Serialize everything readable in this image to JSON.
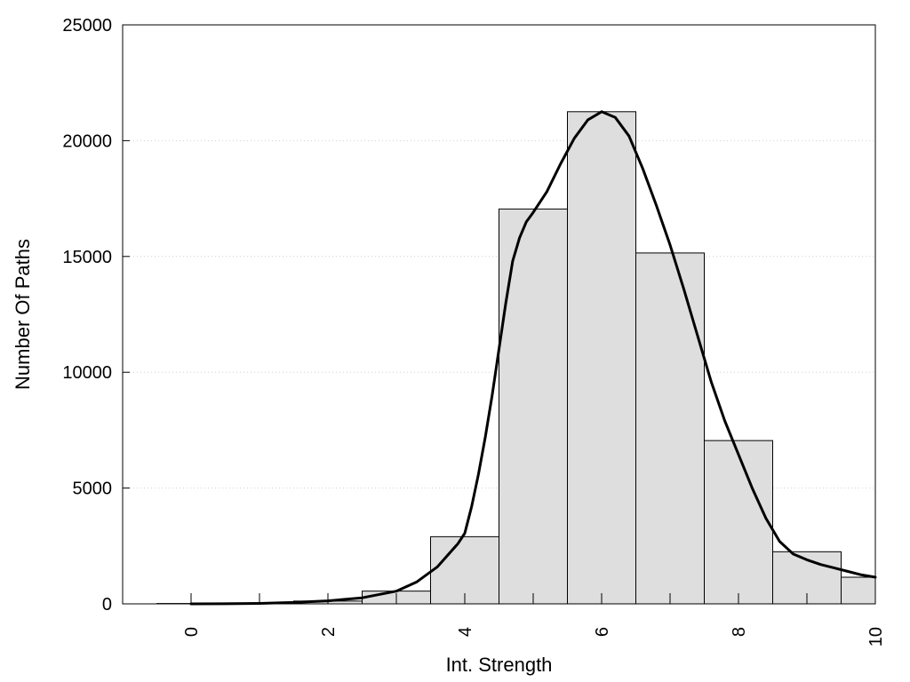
{
  "chart_data": {
    "type": "bar",
    "xlabel": "Int. Strength",
    "ylabel": "Number Of Paths",
    "xlim": [
      -1,
      10
    ],
    "ylim": [
      0,
      25000
    ],
    "x_ticks": [
      0,
      2,
      4,
      6,
      8,
      10
    ],
    "x_tick_labels": [
      "0",
      "2",
      "4",
      "6",
      "8",
      "10"
    ],
    "y_ticks": [
      0,
      5000,
      10000,
      15000,
      20000,
      25000
    ],
    "y_tick_labels": [
      "0",
      "5000",
      "10000",
      "15000",
      "20000",
      "25000"
    ],
    "grid": "horizontal dotted",
    "bins": {
      "x": [
        0,
        1,
        2,
        3,
        4,
        5,
        6,
        7,
        8,
        9,
        10
      ],
      "width": 1,
      "values": [
        15,
        40,
        120,
        550,
        2900,
        17050,
        21250,
        15150,
        7050,
        2250,
        1150
      ]
    },
    "curve": {
      "x": [
        0,
        0.5,
        1,
        1.5,
        2,
        2.5,
        3,
        3.3,
        3.6,
        3.9,
        4,
        4.1,
        4.2,
        4.3,
        4.4,
        4.5,
        4.6,
        4.7,
        4.8,
        4.9,
        5,
        5.2,
        5.4,
        5.6,
        5.8,
        6,
        6.2,
        6.4,
        6.6,
        6.8,
        7,
        7.2,
        7.4,
        7.6,
        7.8,
        8,
        8.2,
        8.4,
        8.6,
        8.8,
        9,
        9.2,
        9.4,
        9.6,
        9.8,
        10
      ],
      "y": [
        0,
        5,
        20,
        60,
        130,
        260,
        550,
        950,
        1600,
        2600,
        3050,
        4200,
        5600,
        7200,
        9000,
        11000,
        13000,
        14800,
        15800,
        16500,
        16900,
        17800,
        19000,
        20100,
        20900,
        21250,
        21000,
        20200,
        18800,
        17200,
        15500,
        13600,
        11600,
        9600,
        7900,
        6450,
        5000,
        3700,
        2700,
        2150,
        1900,
        1700,
        1550,
        1400,
        1250,
        1150
      ],
      "color": "#000000"
    },
    "bar_color": "#dedede"
  }
}
